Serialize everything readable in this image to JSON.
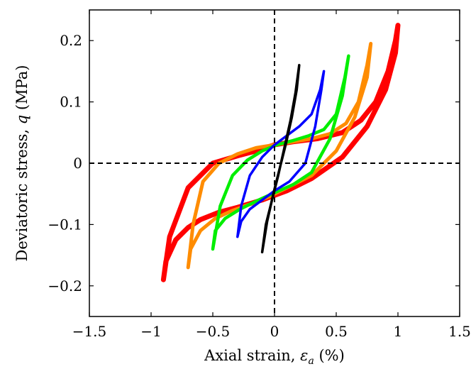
{
  "chart_data": {
    "type": "line",
    "title": "",
    "xlabel_text": "Axial strain, ",
    "xlabel_symbol": "ε",
    "xlabel_sub": "a",
    "xlabel_unit": " (%)",
    "ylabel_text": "Deviatoric stress, ",
    "ylabel_symbol": "q",
    "ylabel_unit": " (MPa)",
    "xlim": [
      -1.5,
      1.5
    ],
    "ylim": [
      -0.25,
      0.25
    ],
    "x_ticks": [
      -1.5,
      -1,
      -0.5,
      0,
      0.5,
      1,
      1.5
    ],
    "x_tick_labels": [
      "−1.5",
      "−1",
      "−0.5",
      "0",
      "0.5",
      "1",
      "1.5"
    ],
    "y_ticks": [
      -0.2,
      -0.1,
      0,
      0.1,
      0.2
    ],
    "y_tick_labels": [
      "−0.2",
      "−0.1",
      "0",
      "0.1",
      "0.2"
    ],
    "grid": false,
    "reference_lines": {
      "x": 0,
      "y": 0,
      "style": "dashed"
    },
    "series": [
      {
        "color": "#ff0000",
        "x": [
          -0.9,
          -0.88,
          -0.8,
          -0.7,
          -0.6,
          -0.45,
          -0.3,
          -0.1,
          0.1,
          0.3,
          0.55,
          0.75,
          0.9,
          0.98,
          1.0,
          0.98,
          0.92,
          0.82,
          0.7,
          0.55,
          0.35,
          0.15,
          0.0,
          -0.15,
          -0.3,
          -0.5,
          -0.7,
          -0.85,
          -0.9
        ],
        "y": [
          -0.19,
          -0.16,
          -0.125,
          -0.105,
          -0.092,
          -0.08,
          -0.072,
          -0.06,
          -0.045,
          -0.025,
          0.01,
          0.06,
          0.12,
          0.18,
          0.225,
          0.2,
          0.15,
          0.1,
          0.07,
          0.05,
          0.04,
          0.035,
          0.03,
          0.02,
          0.012,
          0.0,
          -0.04,
          -0.12,
          -0.19
        ]
      },
      {
        "color": "#ff8c00",
        "x": [
          -0.7,
          -0.68,
          -0.6,
          -0.48,
          -0.35,
          -0.2,
          -0.05,
          0.1,
          0.3,
          0.5,
          0.65,
          0.75,
          0.78,
          0.75,
          0.68,
          0.58,
          0.45,
          0.3,
          0.15,
          0.0,
          -0.15,
          -0.3,
          -0.45,
          -0.58,
          -0.66,
          -0.7
        ],
        "y": [
          -0.17,
          -0.14,
          -0.11,
          -0.09,
          -0.078,
          -0.067,
          -0.055,
          -0.04,
          -0.02,
          0.02,
          0.075,
          0.14,
          0.195,
          0.16,
          0.1,
          0.065,
          0.048,
          0.04,
          0.035,
          0.03,
          0.025,
          0.015,
          0.0,
          -0.03,
          -0.1,
          -0.17
        ]
      },
      {
        "color": "#00ee00",
        "x": [
          -0.5,
          -0.48,
          -0.4,
          -0.28,
          -0.15,
          0.0,
          0.15,
          0.3,
          0.45,
          0.55,
          0.6,
          0.57,
          0.5,
          0.4,
          0.28,
          0.15,
          0.02,
          -0.1,
          -0.22,
          -0.34,
          -0.44,
          -0.5
        ],
        "y": [
          -0.14,
          -0.11,
          -0.09,
          -0.075,
          -0.062,
          -0.048,
          -0.035,
          -0.015,
          0.04,
          0.11,
          0.175,
          0.14,
          0.08,
          0.055,
          0.045,
          0.037,
          0.03,
          0.02,
          0.005,
          -0.02,
          -0.07,
          -0.14
        ]
      },
      {
        "color": "#0000ff",
        "x": [
          -0.3,
          -0.27,
          -0.2,
          -0.1,
          0.0,
          0.12,
          0.25,
          0.33,
          0.38,
          0.4,
          0.37,
          0.3,
          0.2,
          0.1,
          0.0,
          -0.1,
          -0.2,
          -0.27,
          -0.3
        ],
        "y": [
          -0.12,
          -0.095,
          -0.075,
          -0.06,
          -0.045,
          -0.03,
          0.0,
          0.06,
          0.12,
          0.15,
          0.12,
          0.08,
          0.06,
          0.045,
          0.03,
          0.01,
          -0.02,
          -0.07,
          -0.12
        ]
      },
      {
        "color": "#000000",
        "x": [
          -0.1,
          -0.07,
          -0.02,
          0.03,
          0.08,
          0.13,
          0.17,
          0.2,
          0.18,
          0.14,
          0.09,
          0.04,
          -0.01,
          -0.06,
          -0.1
        ],
        "y": [
          -0.145,
          -0.1,
          -0.06,
          -0.02,
          0.025,
          0.07,
          0.115,
          0.16,
          0.12,
          0.075,
          0.03,
          -0.01,
          -0.05,
          -0.095,
          -0.145
        ]
      }
    ]
  }
}
